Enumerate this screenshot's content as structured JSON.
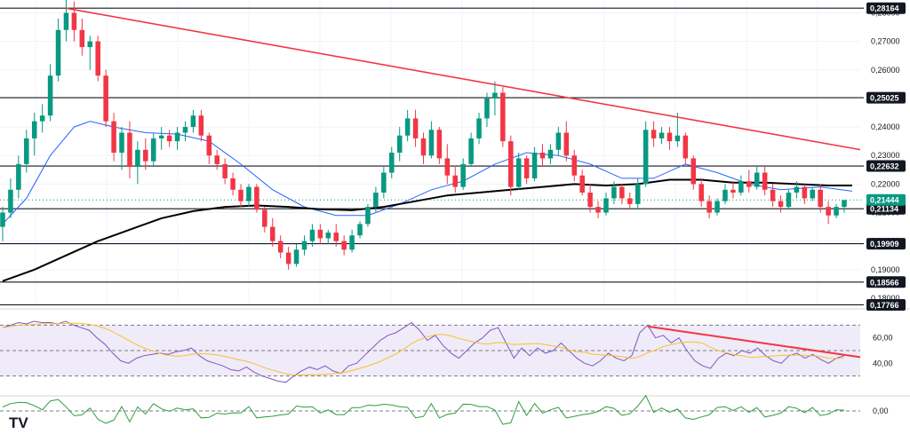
{
  "chart_data": {
    "type": "candlestick",
    "price_axis": {
      "range": [
        0.1775,
        0.2845
      ],
      "ticks": [
        "0,19000",
        "0,20000",
        "0,21000",
        "0,22000",
        "0,23000",
        "0,24000",
        "0,26000",
        "0,27000",
        "0,28000"
      ],
      "partially_hidden_ticks": [
        "0,18000"
      ]
    },
    "horizontal_levels": [
      {
        "label": "0,28164",
        "value": 0.28164
      },
      {
        "label": "0,25025",
        "value": 0.25025
      },
      {
        "label": "0,22632",
        "value": 0.22632
      },
      {
        "label": "0,21134",
        "value": 0.21134
      },
      {
        "label": "0,19909",
        "value": 0.19909
      },
      {
        "label": "0,18566",
        "value": 0.18566
      },
      {
        "label": "0,17766",
        "value": 0.17766
      }
    ],
    "last_price": {
      "label": "0,21444",
      "value": 0.21444
    },
    "trendline": {
      "name": "descending resistance",
      "color": "#f23645",
      "start": {
        "bar": 8,
        "price": 0.2816
      },
      "end": {
        "bar": 119,
        "price": 0.2266
      }
    },
    "ohlc": [
      [
        0.205,
        0.212,
        0.2,
        0.21
      ],
      [
        0.21,
        0.222,
        0.208,
        0.218
      ],
      [
        0.218,
        0.23,
        0.215,
        0.227
      ],
      [
        0.227,
        0.239,
        0.224,
        0.236
      ],
      [
        0.236,
        0.245,
        0.23,
        0.242
      ],
      [
        0.242,
        0.248,
        0.238,
        0.244
      ],
      [
        0.244,
        0.262,
        0.242,
        0.258
      ],
      [
        0.258,
        0.278,
        0.256,
        0.274
      ],
      [
        0.274,
        0.285,
        0.27,
        0.28
      ],
      [
        0.28,
        0.284,
        0.27,
        0.274
      ],
      [
        0.274,
        0.278,
        0.265,
        0.268
      ],
      [
        0.268,
        0.272,
        0.26,
        0.27
      ],
      [
        0.27,
        0.272,
        0.256,
        0.258
      ],
      [
        0.258,
        0.26,
        0.24,
        0.242
      ],
      [
        0.242,
        0.245,
        0.228,
        0.231
      ],
      [
        0.231,
        0.24,
        0.225,
        0.238
      ],
      [
        0.238,
        0.242,
        0.222,
        0.226
      ],
      [
        0.226,
        0.235,
        0.22,
        0.232
      ],
      [
        0.232,
        0.236,
        0.225,
        0.228
      ],
      [
        0.228,
        0.238,
        0.226,
        0.236
      ],
      [
        0.236,
        0.24,
        0.232,
        0.237
      ],
      [
        0.237,
        0.239,
        0.233,
        0.235
      ],
      [
        0.235,
        0.24,
        0.232,
        0.238
      ],
      [
        0.238,
        0.242,
        0.235,
        0.24
      ],
      [
        0.24,
        0.246,
        0.238,
        0.244
      ],
      [
        0.244,
        0.246,
        0.235,
        0.237
      ],
      [
        0.237,
        0.238,
        0.227,
        0.23
      ],
      [
        0.23,
        0.232,
        0.225,
        0.227
      ],
      [
        0.227,
        0.229,
        0.22,
        0.222
      ],
      [
        0.222,
        0.224,
        0.216,
        0.218
      ],
      [
        0.218,
        0.22,
        0.212,
        0.214
      ],
      [
        0.214,
        0.22,
        0.212,
        0.219
      ],
      [
        0.219,
        0.22,
        0.21,
        0.211
      ],
      [
        0.211,
        0.212,
        0.203,
        0.205
      ],
      [
        0.205,
        0.208,
        0.198,
        0.2
      ],
      [
        0.2,
        0.202,
        0.194,
        0.196
      ],
      [
        0.196,
        0.198,
        0.19,
        0.192
      ],
      [
        0.192,
        0.199,
        0.191,
        0.197
      ],
      [
        0.197,
        0.202,
        0.195,
        0.2
      ],
      [
        0.2,
        0.206,
        0.198,
        0.204
      ],
      [
        0.204,
        0.206,
        0.199,
        0.201
      ],
      [
        0.201,
        0.204,
        0.199,
        0.203
      ],
      [
        0.203,
        0.206,
        0.198,
        0.2
      ],
      [
        0.2,
        0.202,
        0.195,
        0.197
      ],
      [
        0.197,
        0.204,
        0.196,
        0.202
      ],
      [
        0.202,
        0.207,
        0.201,
        0.206
      ],
      [
        0.206,
        0.213,
        0.205,
        0.212
      ],
      [
        0.212,
        0.219,
        0.21,
        0.217
      ],
      [
        0.217,
        0.226,
        0.215,
        0.224
      ],
      [
        0.224,
        0.233,
        0.222,
        0.231
      ],
      [
        0.231,
        0.24,
        0.228,
        0.237
      ],
      [
        0.237,
        0.246,
        0.235,
        0.243
      ],
      [
        0.243,
        0.246,
        0.233,
        0.236
      ],
      [
        0.236,
        0.238,
        0.227,
        0.23
      ],
      [
        0.23,
        0.242,
        0.229,
        0.239
      ],
      [
        0.239,
        0.24,
        0.227,
        0.229
      ],
      [
        0.229,
        0.234,
        0.22,
        0.223
      ],
      [
        0.223,
        0.226,
        0.217,
        0.219
      ],
      [
        0.219,
        0.229,
        0.218,
        0.227
      ],
      [
        0.227,
        0.238,
        0.226,
        0.236
      ],
      [
        0.236,
        0.245,
        0.234,
        0.243
      ],
      [
        0.243,
        0.252,
        0.24,
        0.25
      ],
      [
        0.25,
        0.256,
        0.244,
        0.252
      ],
      [
        0.252,
        0.254,
        0.233,
        0.235
      ],
      [
        0.235,
        0.237,
        0.216,
        0.219
      ],
      [
        0.219,
        0.231,
        0.218,
        0.229
      ],
      [
        0.229,
        0.23,
        0.22,
        0.222
      ],
      [
        0.222,
        0.233,
        0.221,
        0.231
      ],
      [
        0.231,
        0.234,
        0.226,
        0.229
      ],
      [
        0.229,
        0.234,
        0.227,
        0.232
      ],
      [
        0.232,
        0.24,
        0.23,
        0.238
      ],
      [
        0.238,
        0.242,
        0.228,
        0.23
      ],
      [
        0.23,
        0.232,
        0.221,
        0.223
      ],
      [
        0.223,
        0.225,
        0.216,
        0.217
      ],
      [
        0.217,
        0.22,
        0.21,
        0.212
      ],
      [
        0.212,
        0.214,
        0.208,
        0.21
      ],
      [
        0.21,
        0.217,
        0.209,
        0.215
      ],
      [
        0.215,
        0.221,
        0.213,
        0.219
      ],
      [
        0.219,
        0.22,
        0.213,
        0.215
      ],
      [
        0.215,
        0.217,
        0.211,
        0.213
      ],
      [
        0.213,
        0.222,
        0.211,
        0.22
      ],
      [
        0.22,
        0.242,
        0.219,
        0.239
      ],
      [
        0.239,
        0.242,
        0.233,
        0.236
      ],
      [
        0.236,
        0.24,
        0.234,
        0.238
      ],
      [
        0.238,
        0.24,
        0.232,
        0.235
      ],
      [
        0.235,
        0.245,
        0.233,
        0.237
      ],
      [
        0.237,
        0.238,
        0.227,
        0.229
      ],
      [
        0.229,
        0.23,
        0.218,
        0.22
      ],
      [
        0.22,
        0.222,
        0.212,
        0.214
      ],
      [
        0.214,
        0.216,
        0.208,
        0.21
      ],
      [
        0.21,
        0.215,
        0.209,
        0.214
      ],
      [
        0.214,
        0.22,
        0.213,
        0.218
      ],
      [
        0.218,
        0.221,
        0.215,
        0.217
      ],
      [
        0.217,
        0.223,
        0.216,
        0.221
      ],
      [
        0.221,
        0.225,
        0.217,
        0.219
      ],
      [
        0.219,
        0.226,
        0.218,
        0.224
      ],
      [
        0.224,
        0.226,
        0.216,
        0.218
      ],
      [
        0.218,
        0.22,
        0.212,
        0.214
      ],
      [
        0.214,
        0.216,
        0.21,
        0.212
      ],
      [
        0.212,
        0.218,
        0.211,
        0.217
      ],
      [
        0.217,
        0.221,
        0.215,
        0.219
      ],
      [
        0.219,
        0.22,
        0.213,
        0.215
      ],
      [
        0.215,
        0.219,
        0.214,
        0.218
      ],
      [
        0.218,
        0.22,
        0.21,
        0.212
      ],
      [
        0.212,
        0.214,
        0.206,
        0.209
      ],
      [
        0.209,
        0.213,
        0.208,
        0.212
      ],
      [
        0.212,
        0.2144,
        0.21,
        0.2144
      ]
    ],
    "indicators": [
      {
        "name": "MA 50",
        "color": "#2962ff",
        "values": [
          [
            0,
            0.206
          ],
          [
            3,
            0.215
          ],
          [
            6,
            0.23
          ],
          [
            9,
            0.24
          ],
          [
            11,
            0.242
          ],
          [
            14,
            0.24
          ],
          [
            18,
            0.238
          ],
          [
            22,
            0.2375
          ],
          [
            26,
            0.235
          ],
          [
            30,
            0.227
          ],
          [
            34,
            0.218
          ],
          [
            38,
            0.212
          ],
          [
            42,
            0.209
          ],
          [
            46,
            0.209
          ],
          [
            50,
            0.213
          ],
          [
            54,
            0.218
          ],
          [
            58,
            0.221
          ],
          [
            62,
            0.227
          ],
          [
            66,
            0.231
          ],
          [
            70,
            0.23
          ],
          [
            74,
            0.227
          ],
          [
            78,
            0.222
          ],
          [
            82,
            0.222
          ],
          [
            86,
            0.227
          ],
          [
            90,
            0.224
          ],
          [
            94,
            0.22
          ],
          [
            98,
            0.218
          ],
          [
            103,
            0.219
          ],
          [
            107,
            0.2175
          ]
        ]
      },
      {
        "name": "MA 200",
        "color": "#000000",
        "values": [
          [
            0,
            0.186
          ],
          [
            4,
            0.19
          ],
          [
            8,
            0.195
          ],
          [
            12,
            0.2
          ],
          [
            16,
            0.204
          ],
          [
            20,
            0.208
          ],
          [
            24,
            0.2105
          ],
          [
            28,
            0.212
          ],
          [
            32,
            0.2125
          ],
          [
            36,
            0.212
          ],
          [
            40,
            0.2112
          ],
          [
            44,
            0.2108
          ],
          [
            48,
            0.212
          ],
          [
            52,
            0.214
          ],
          [
            56,
            0.216
          ],
          [
            60,
            0.217
          ],
          [
            64,
            0.218
          ],
          [
            68,
            0.219
          ],
          [
            72,
            0.22
          ],
          [
            76,
            0.2195
          ],
          [
            80,
            0.22
          ],
          [
            84,
            0.2215
          ],
          [
            88,
            0.2215
          ],
          [
            92,
            0.2205
          ],
          [
            96,
            0.2205
          ],
          [
            100,
            0.22
          ],
          [
            104,
            0.2195
          ],
          [
            107,
            0.2195
          ]
        ]
      }
    ],
    "rsi": {
      "range": [
        20,
        80
      ],
      "ticks": [
        "60,00",
        "40,00"
      ],
      "band": [
        30,
        70
      ],
      "mid": 50,
      "trendline": {
        "start": {
          "bar": 82,
          "value": 69
        },
        "end": {
          "bar": 110,
          "value": 44
        }
      },
      "values": [
        68,
        70,
        72,
        71,
        73,
        72,
        72,
        71,
        73,
        70,
        68,
        66,
        60,
        55,
        48,
        42,
        40,
        44,
        46,
        47,
        48,
        47,
        49,
        50,
        52,
        46,
        42,
        40,
        38,
        35,
        34,
        37,
        33,
        30,
        28,
        26,
        25,
        30,
        34,
        37,
        35,
        38,
        34,
        32,
        38,
        40,
        46,
        52,
        58,
        62,
        64,
        68,
        72,
        66,
        58,
        62,
        54,
        48,
        44,
        50,
        56,
        60,
        66,
        68,
        56,
        44,
        52,
        46,
        52,
        48,
        50,
        56,
        50,
        44,
        40,
        38,
        42,
        48,
        44,
        42,
        46,
        64,
        70,
        60,
        62,
        56,
        60,
        50,
        42,
        38,
        36,
        44,
        48,
        46,
        50,
        48,
        52,
        46,
        42,
        40,
        46,
        48,
        44,
        47,
        43,
        40,
        44,
        46
      ]
    },
    "oscillator": {
      "ticks": [
        "0,00"
      ],
      "color": "#2e9e3d"
    },
    "watermark": "TV"
  }
}
